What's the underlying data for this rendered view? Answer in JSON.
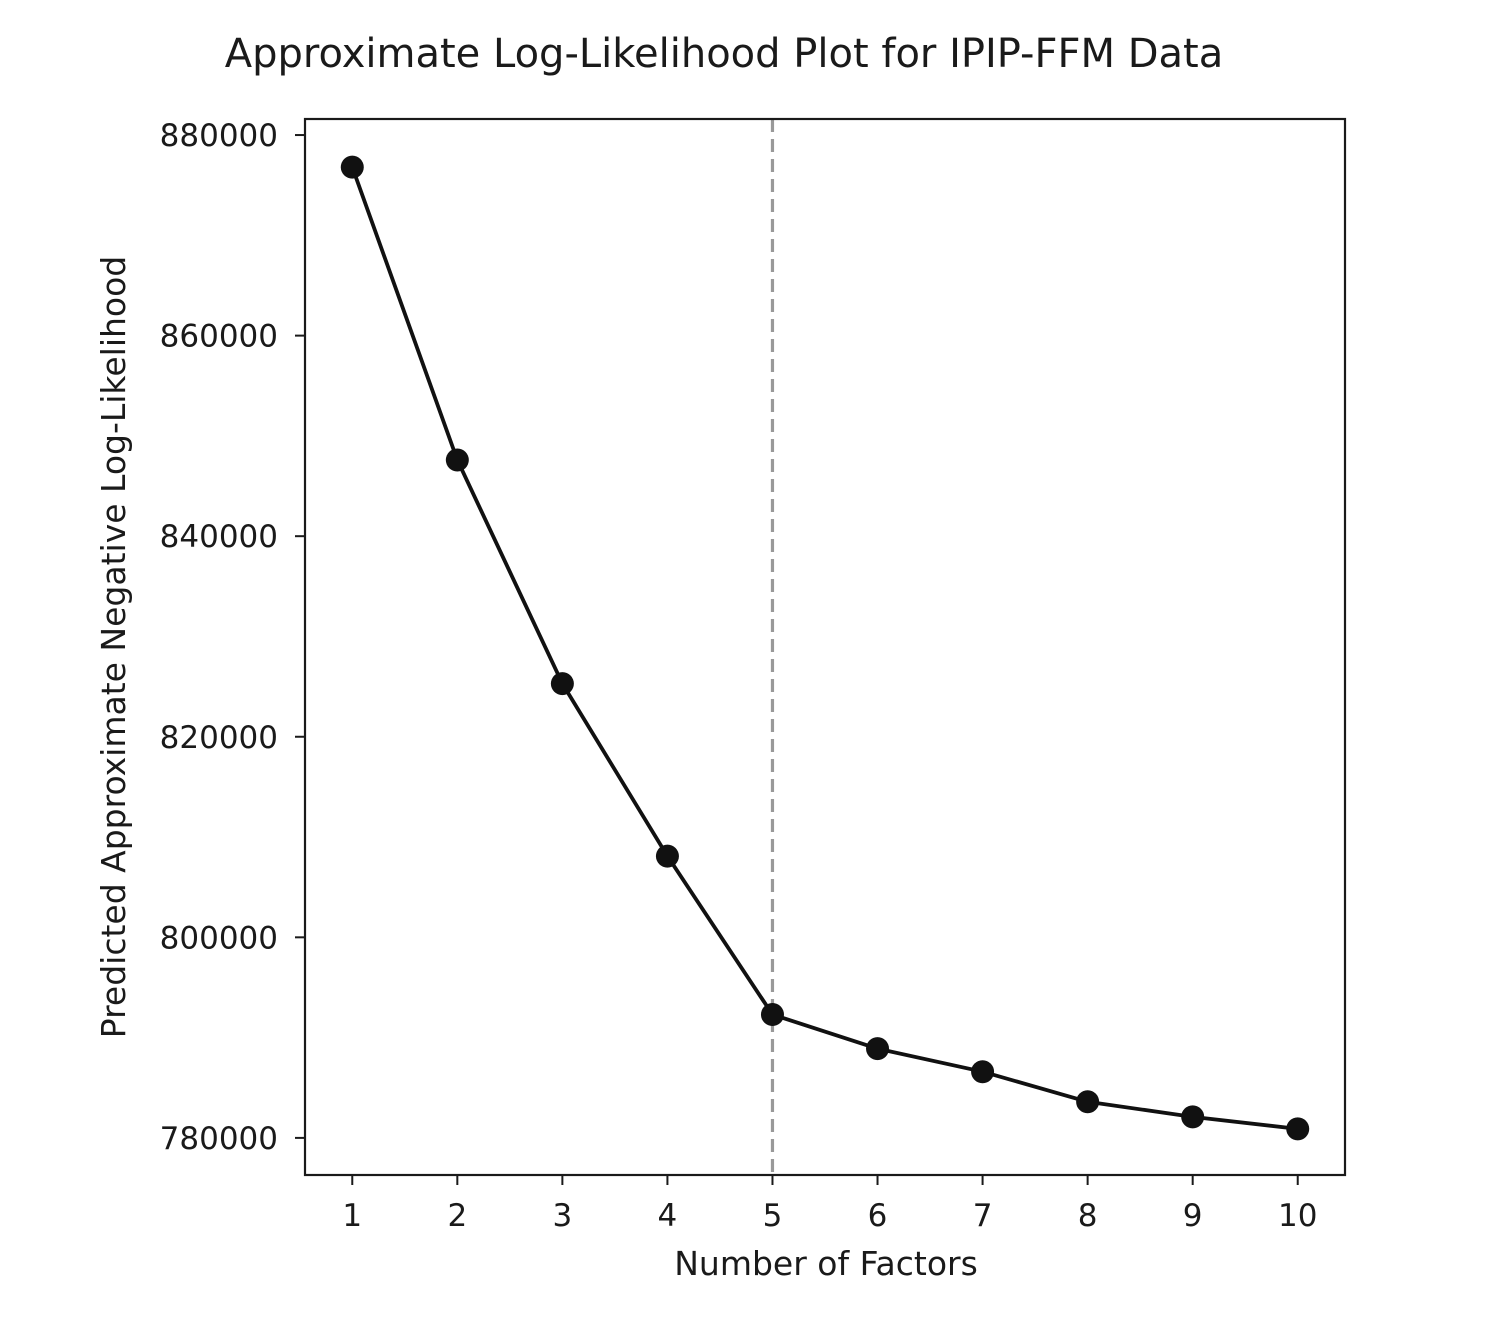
{
  "chart_data": {
    "type": "line",
    "title": "Approximate Log-Likelihood Plot for IPIP-FFM Data",
    "xlabel": "Number of Factors",
    "ylabel": "Predicted Approximate Negative Log-Likelihood",
    "x": [
      1,
      2,
      3,
      4,
      5,
      6,
      7,
      8,
      9,
      10
    ],
    "series": [
      {
        "values": [
          876800,
          847600,
          825300,
          808100,
          792300,
          788900,
          786600,
          783600,
          782100,
          780900
        ],
        "color": "#111111",
        "marker": "circle"
      }
    ],
    "x_ticks": [
      "1",
      "2",
      "3",
      "4",
      "5",
      "6",
      "7",
      "8",
      "9",
      "10"
    ],
    "y_ticks": [
      "780000",
      "800000",
      "820000",
      "840000",
      "860000",
      "880000"
    ],
    "y_tick_values": [
      780000,
      800000,
      820000,
      840000,
      860000,
      880000
    ],
    "xlim": [
      0.55,
      10.45
    ],
    "ylim": [
      776300,
      881600
    ],
    "reference_line": {
      "x": 5,
      "style": "dashed",
      "color": "#999999"
    },
    "grid": false,
    "legend": "none"
  }
}
